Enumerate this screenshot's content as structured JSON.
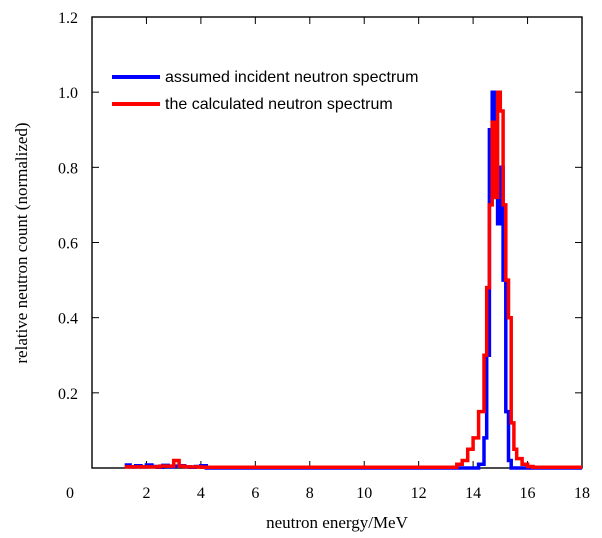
{
  "chart_data": {
    "type": "line",
    "title": "",
    "xlabel": "neutron energy/MeV",
    "ylabel": "relative neutron count (normalized)",
    "xlim": [
      0,
      18
    ],
    "ylim": [
      0,
      1.2
    ],
    "x_ticks": [
      "0",
      "2",
      "4",
      "6",
      "8",
      "10",
      "12",
      "14",
      "16",
      "18"
    ],
    "y_ticks": [
      "0.2",
      "0.4",
      "0.6",
      "0.8",
      "1.0",
      "1.2"
    ],
    "y_tick_values": [
      0.2,
      0.4,
      0.6,
      0.8,
      1.0,
      1.2
    ],
    "x_tick_values": [
      0,
      2,
      4,
      6,
      8,
      10,
      12,
      14,
      16,
      18
    ],
    "grid": false,
    "legend_position": "top-left",
    "series": [
      {
        "name": "assumed incident neutron spectrum",
        "color": "#0000ff",
        "step": true,
        "x": [
          1.2,
          1.4,
          1.6,
          1.8,
          2.0,
          2.2,
          2.4,
          2.6,
          2.8,
          3.0,
          3.2,
          3.4,
          3.6,
          3.8,
          4.0,
          4.2,
          14.0,
          14.2,
          14.4,
          14.5,
          14.6,
          14.7,
          14.8,
          14.9,
          15.0,
          15.1,
          15.2,
          15.3,
          15.4,
          15.5,
          15.7,
          18.0
        ],
        "y": [
          0.008,
          0.003,
          0.006,
          0.003,
          0.008,
          0.004,
          0.002,
          0.007,
          0.003,
          0.005,
          0.006,
          0.003,
          0.002,
          0.004,
          0.006,
          0.0,
          0.0,
          0.01,
          0.08,
          0.3,
          0.9,
          1.0,
          0.72,
          0.65,
          0.8,
          0.5,
          0.15,
          0.02,
          0.0,
          0.0,
          0.0,
          0.0
        ]
      },
      {
        "name": "the calculated neutron spectrum",
        "color": "#ff0000",
        "step": true,
        "x": [
          1.2,
          2.5,
          3.0,
          3.2,
          3.4,
          4.0,
          13.0,
          13.4,
          13.6,
          13.8,
          14.0,
          14.2,
          14.4,
          14.5,
          14.6,
          14.7,
          14.8,
          14.9,
          15.0,
          15.1,
          15.2,
          15.3,
          15.4,
          15.5,
          15.6,
          15.8,
          16.0,
          16.2,
          18.0
        ],
        "y": [
          0.003,
          0.005,
          0.02,
          0.005,
          0.003,
          0.002,
          0.002,
          0.01,
          0.02,
          0.05,
          0.08,
          0.15,
          0.3,
          0.48,
          0.7,
          0.92,
          0.72,
          1.0,
          0.95,
          0.7,
          0.5,
          0.4,
          0.12,
          0.05,
          0.025,
          0.01,
          0.004,
          0.002,
          0.002
        ]
      }
    ]
  }
}
